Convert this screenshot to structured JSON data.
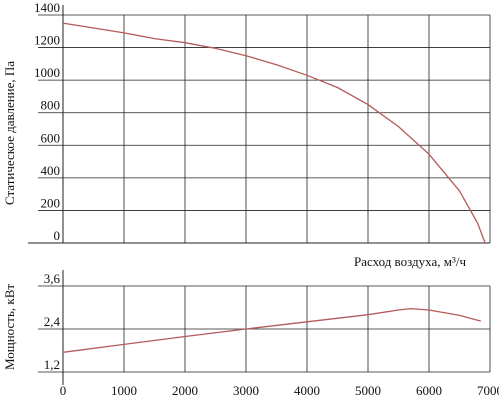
{
  "chart_data": [
    {
      "type": "line",
      "ylabel": "Статическое давление, Па",
      "xlim": [
        0,
        7000
      ],
      "ylim": [
        0,
        1400
      ],
      "grid": true,
      "x_ticks": [
        1000,
        2000,
        3000,
        4000,
        5000,
        6000,
        7000
      ],
      "y_ticks": [
        {
          "value": 0,
          "label": "0"
        },
        {
          "value": 200,
          "label": "200"
        },
        {
          "value": 400,
          "label": "400"
        },
        {
          "value": 600,
          "label": "600"
        },
        {
          "value": 800,
          "label": "800"
        },
        {
          "value": 1000,
          "label": "1000"
        },
        {
          "value": 1200,
          "label": "1200"
        },
        {
          "value": 1400,
          "label": "1400"
        }
      ],
      "series": [
        {
          "color": "#b55a5a",
          "points": [
            [
              0,
              1350
            ],
            [
              500,
              1320
            ],
            [
              1000,
              1290
            ],
            [
              1500,
              1255
            ],
            [
              2000,
              1230
            ],
            [
              2500,
              1195
            ],
            [
              3000,
              1150
            ],
            [
              3500,
              1095
            ],
            [
              4000,
              1030
            ],
            [
              4500,
              955
            ],
            [
              5000,
              850
            ],
            [
              5500,
              715
            ],
            [
              6000,
              545
            ],
            [
              6500,
              320
            ],
            [
              6800,
              120
            ],
            [
              6920,
              0
            ]
          ]
        }
      ]
    },
    {
      "type": "line",
      "xlabel": "Расход воздуха, м³/ч",
      "ylabel": "Мощность, кВт",
      "xlim": [
        0,
        7000
      ],
      "ylim": [
        1.2,
        3.6
      ],
      "grid": true,
      "x_ticks": [
        {
          "value": 0,
          "label": "0"
        },
        {
          "value": 1000,
          "label": "1000"
        },
        {
          "value": 2000,
          "label": "2000"
        },
        {
          "value": 3000,
          "label": "3000"
        },
        {
          "value": 4000,
          "label": "4000"
        },
        {
          "value": 5000,
          "label": "5000"
        },
        {
          "value": 6000,
          "label": "6000"
        },
        {
          "value": 7000,
          "label": "7000"
        }
      ],
      "y_ticks": [
        {
          "value": 1.2,
          "label": "1,2"
        },
        {
          "value": 2.4,
          "label": "2,4"
        },
        {
          "value": 3.6,
          "label": "3,6"
        }
      ],
      "series": [
        {
          "color": "#b55a5a",
          "points": [
            [
              0,
              1.75
            ],
            [
              1000,
              1.97
            ],
            [
              2000,
              2.19
            ],
            [
              3000,
              2.4
            ],
            [
              4000,
              2.6
            ],
            [
              5000,
              2.8
            ],
            [
              5500,
              2.93
            ],
            [
              5700,
              2.97
            ],
            [
              6000,
              2.93
            ],
            [
              6500,
              2.78
            ],
            [
              6850,
              2.62
            ]
          ]
        }
      ]
    }
  ]
}
